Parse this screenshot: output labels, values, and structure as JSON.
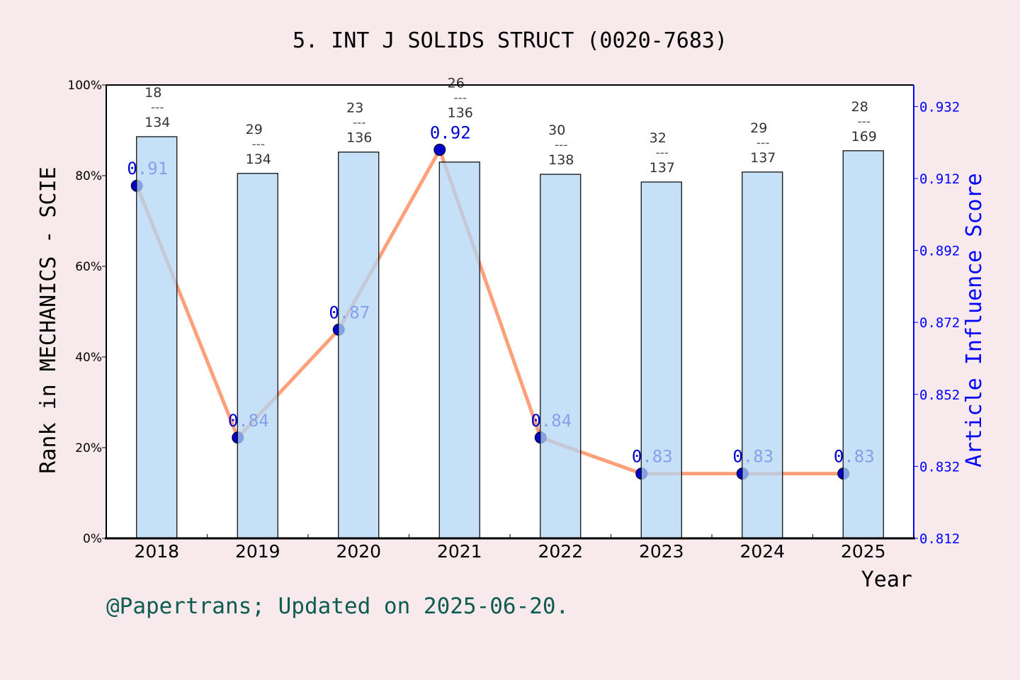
{
  "chart_data": {
    "type": "bar+line",
    "title": "5. INT J SOLIDS STRUCT (0020-7683)",
    "xlabel": "Year",
    "ylabel_left": "Rank in MECHANICS - SCIE",
    "ylabel_right": "Article Influence Score",
    "categories": [
      "2018",
      "2019",
      "2020",
      "2021",
      "2022",
      "2023",
      "2024",
      "2025"
    ],
    "left_axis": {
      "ylim": [
        0,
        100
      ],
      "ticks": [
        "0%",
        "20%",
        "40%",
        "60%",
        "80%",
        "100%"
      ]
    },
    "right_axis": {
      "ylim": [
        0.812,
        0.938
      ],
      "ticks": [
        "0.812",
        "0.832",
        "0.852",
        "0.872",
        "0.892",
        "0.912",
        "0.932"
      ]
    },
    "bars": {
      "values": [
        88.6,
        80.5,
        85.2,
        83.0,
        80.3,
        78.6,
        80.8,
        85.5
      ],
      "rank": [
        "18",
        "29",
        "23",
        "26",
        "30",
        "32",
        "29",
        "28"
      ],
      "total": [
        "134",
        "134",
        "136",
        "136",
        "138",
        "137",
        "137",
        "169"
      ],
      "separator": "---",
      "color": "#b2d6f4"
    },
    "line": {
      "values": [
        0.91,
        0.84,
        0.87,
        0.92,
        0.84,
        0.83,
        0.83,
        0.83
      ],
      "labels": [
        "0.91",
        "0.84",
        "0.87",
        "0.92",
        "0.84",
        "0.83",
        "0.83",
        "0.83"
      ],
      "color": "#ffa07a",
      "marker_color": "#0000cd"
    },
    "grid": false,
    "legend": "none"
  },
  "footer": "@Papertrans; Updated on 2025-06-20."
}
